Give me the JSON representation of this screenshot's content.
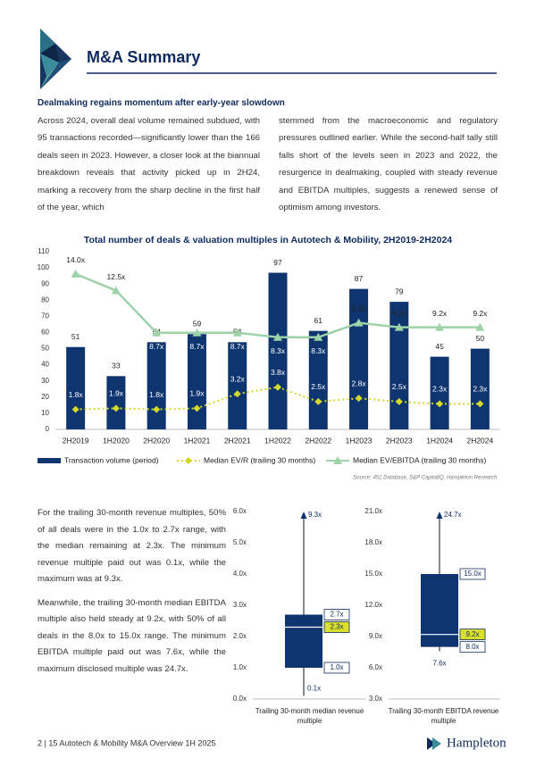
{
  "header": {
    "title": "M&A Summary"
  },
  "intro": {
    "heading": "Dealmaking regains momentum after early-year slowdown",
    "columns": [
      "Across 2024, overall deal volume remained subdued, with 95 transactions recorded—significantly lower than the 166 deals seen in 2023. However, a closer look at the biannual breakdown reveals that activity picked up in 2H24, marking a recovery from the sharp decline in the first half of the year, which",
      "stemmed from the macroeconomic and regulatory pressures outlined earlier. While the second-half tally still falls short of the levels seen in 2023 and 2022, the resurgence in dealmaking, coupled with steady revenue and EBITDA multiples, suggests a renewed sense of optimism among investors."
    ]
  },
  "chart_data": [
    {
      "type": "bar",
      "title": "Total number of deals & valuation multiples in Autotech & Mobility, 2H2019-2H2024",
      "categories": [
        "2H2019",
        "1H2020",
        "2H2020",
        "1H2021",
        "2H2021",
        "1H2022",
        "2H2022",
        "1H2023",
        "2H2023",
        "1H2024",
        "2H2024"
      ],
      "series": [
        {
          "name": "Transaction volume (period)",
          "type": "bar",
          "color": "#0f3570",
          "values": [
            51,
            33,
            54,
            59,
            54,
            97,
            61,
            87,
            79,
            45,
            50
          ]
        },
        {
          "name": "Median EV/R (trailing 30 months)",
          "type": "line",
          "axis": "y2",
          "color": "#d4d829",
          "values": [
            1.8,
            1.9,
            1.8,
            1.9,
            3.2,
            3.8,
            2.5,
            2.8,
            2.5,
            2.3,
            2.3
          ],
          "value_labels": [
            "1.8x",
            "1.9x",
            "1.8x",
            "1.9x",
            "3.2x",
            "3.8x",
            "2.5x",
            "2.8x",
            "2.5x",
            "2.3x",
            "2.3x"
          ]
        },
        {
          "name": "Median EV/EBITDA (trailing 30 months)",
          "type": "line",
          "axis": "y2",
          "color": "#9ed2a8",
          "values": [
            14.0,
            12.5,
            8.7,
            8.7,
            8.7,
            8.3,
            8.3,
            9.6,
            9.2,
            9.2,
            9.2
          ],
          "value_labels": [
            "14.0x",
            "12.5x",
            "8.7x",
            "8.7x",
            "8.7x",
            "8.3x",
            "8.3x",
            "9.6x",
            "9.2x",
            "9.2x",
            "9.2x"
          ]
        }
      ],
      "ylim": [
        0,
        110
      ],
      "yticks": [
        0,
        10,
        20,
        30,
        40,
        50,
        60,
        70,
        80,
        90,
        100,
        110
      ],
      "y2lim": [
        0,
        16
      ],
      "grid": false,
      "legend": "bottom",
      "source": "Source: 451 Database, S&P CapitalIQ, Hampleton Research."
    },
    {
      "type": "box",
      "xlabel": "Trailing 30-month median revenue multiple",
      "stats": {
        "min": 0.1,
        "q1": 1.0,
        "median": 2.3,
        "q3": 2.7,
        "max": 9.3
      },
      "value_labels": {
        "min": "0.1x",
        "q1": "1.0x",
        "median": "2.3x",
        "q3": "2.7x",
        "max": "9.3x"
      },
      "color": "#0f3570",
      "ylim": [
        0,
        6
      ],
      "yticks": [
        {
          "value": 0,
          "label": "0.0x"
        },
        {
          "value": 1,
          "label": "1.0x"
        },
        {
          "value": 2,
          "label": "2.0x"
        },
        {
          "value": 3,
          "label": "3.0x"
        },
        {
          "value": 4,
          "label": "4.0x"
        },
        {
          "value": 5,
          "label": "5.0x"
        },
        {
          "value": 6,
          "label": "6.0x"
        }
      ]
    },
    {
      "type": "box",
      "xlabel": "Trailing 30-month EBITDA revenue multiple",
      "stats": {
        "min": 7.6,
        "q1": 8.0,
        "median": 9.2,
        "q3": 15.0,
        "max": 24.7
      },
      "value_labels": {
        "min": "7.6x",
        "q1": "8.0x",
        "median": "9.2x",
        "q3": "15.0x",
        "max": "24.7x"
      },
      "color": "#0f3570",
      "ylim": [
        3,
        21
      ],
      "yticks": [
        {
          "value": 3,
          "label": "3.0x"
        },
        {
          "value": 6,
          "label": "6.0x"
        },
        {
          "value": 9,
          "label": "9.0x"
        },
        {
          "value": 12,
          "label": "12.0x"
        },
        {
          "value": 15,
          "label": "15.0x"
        },
        {
          "value": 18,
          "label": "18.0x"
        },
        {
          "value": 21,
          "label": "21.0x"
        }
      ]
    }
  ],
  "body": {
    "paragraphs": [
      "For the trailing 30-month revenue multiples, 50% of all deals were in the 1.0x to 2.7x range, with the median remaining at 2.3x. The minimum revenue multiple paid out was 0.1x, while the maximum was at 9.3x.",
      "Meanwhile, the trailing 30-month median EBITDA multiple also held steady at 9.2x, with 50% of all deals in the 8.0x to 15.0x range. The minimum EBITDA multiple paid out was 7.6x, while the maximum disclosed multiple was 24.7x."
    ]
  },
  "footer": {
    "page": "2 | 15 Autotech & Mobility M&A Overview 1H 2025",
    "logo": "Hampleton"
  }
}
